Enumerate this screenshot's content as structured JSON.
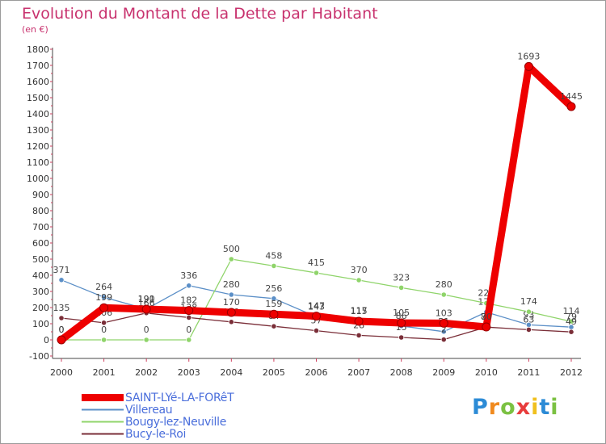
{
  "chart_data": {
    "type": "line",
    "title": "Evolution du Montant de la Dette par Habitant",
    "subtitle": "(en €)",
    "xlabel": "",
    "ylabel": "",
    "ylim": [
      -100,
      1800
    ],
    "yticks": [
      -100,
      0,
      100,
      200,
      300,
      400,
      500,
      600,
      700,
      800,
      900,
      1000,
      1100,
      1200,
      1300,
      1400,
      1500,
      1600,
      1700,
      1800
    ],
    "x": [
      "2000",
      "2001",
      "2002",
      "2003",
      "2004",
      "2005",
      "2006",
      "2007",
      "2008",
      "2009",
      "2010",
      "2011",
      "2012"
    ],
    "grid": false,
    "legend_position": "bottom-left",
    "series": [
      {
        "name": "Villereau",
        "color": "#5b8fc7",
        "values": [
          371,
          264,
          191,
          336,
          280,
          256,
          143,
          117,
          86,
          51,
          172,
          93,
          79
        ],
        "labels": [
          "371",
          "264",
          "191",
          "336",
          "280",
          "256",
          "143",
          "117",
          "86",
          "51",
          "172",
          "93",
          "79"
        ]
      },
      {
        "name": "Bougy-lez-Neuville",
        "color": "#8fd46a",
        "values": [
          0,
          0,
          0,
          0,
          500,
          458,
          415,
          370,
          323,
          280,
          227,
          174,
          114
        ],
        "labels": [
          "0",
          "0",
          "0",
          "0",
          "500",
          "458",
          "415",
          "370",
          "323",
          "280",
          "227",
          "174",
          "114"
        ]
      },
      {
        "name": "Bucy-le-Roi",
        "color": "#7a2e38",
        "values": [
          135,
          106,
          166,
          138,
          111,
          84,
          57,
          28,
          15,
          2,
          79,
          63,
          49
        ],
        "labels": [
          "135",
          "106",
          "166",
          "138",
          "111",
          "84",
          "57",
          "28",
          "15",
          "2",
          "79",
          "63",
          "49"
        ]
      },
      {
        "name": "SAINT-LYé-LA-FORêT",
        "color": "#ee0000",
        "values": [
          0,
          199,
          190,
          182,
          170,
          159,
          147,
          115,
          105,
          103,
          80,
          1693,
          1445
        ],
        "labels": [
          "0",
          "199",
          "190",
          "182",
          "170",
          "159",
          "147",
          "115",
          "105",
          "103",
          "80",
          "1693",
          "1445"
        ]
      }
    ]
  },
  "legend": {
    "items": [
      {
        "label": "SAINT-LYé-LA-FORêT",
        "color": "#ee0000"
      },
      {
        "label": "Villereau",
        "color": "#5b8fc7"
      },
      {
        "label": "Bougy-lez-Neuville",
        "color": "#8fd46a"
      },
      {
        "label": "Bucy-le-Roi",
        "color": "#7a2e38"
      }
    ]
  },
  "logo": {
    "letters": [
      "P",
      "r",
      "o",
      "x",
      "i",
      "t",
      "i"
    ],
    "colors": [
      "#2c8bd6",
      "#f08a1e",
      "#7bc142",
      "#e83c3c",
      "#f0c01e",
      "#2c8bd6",
      "#7bc142"
    ]
  }
}
